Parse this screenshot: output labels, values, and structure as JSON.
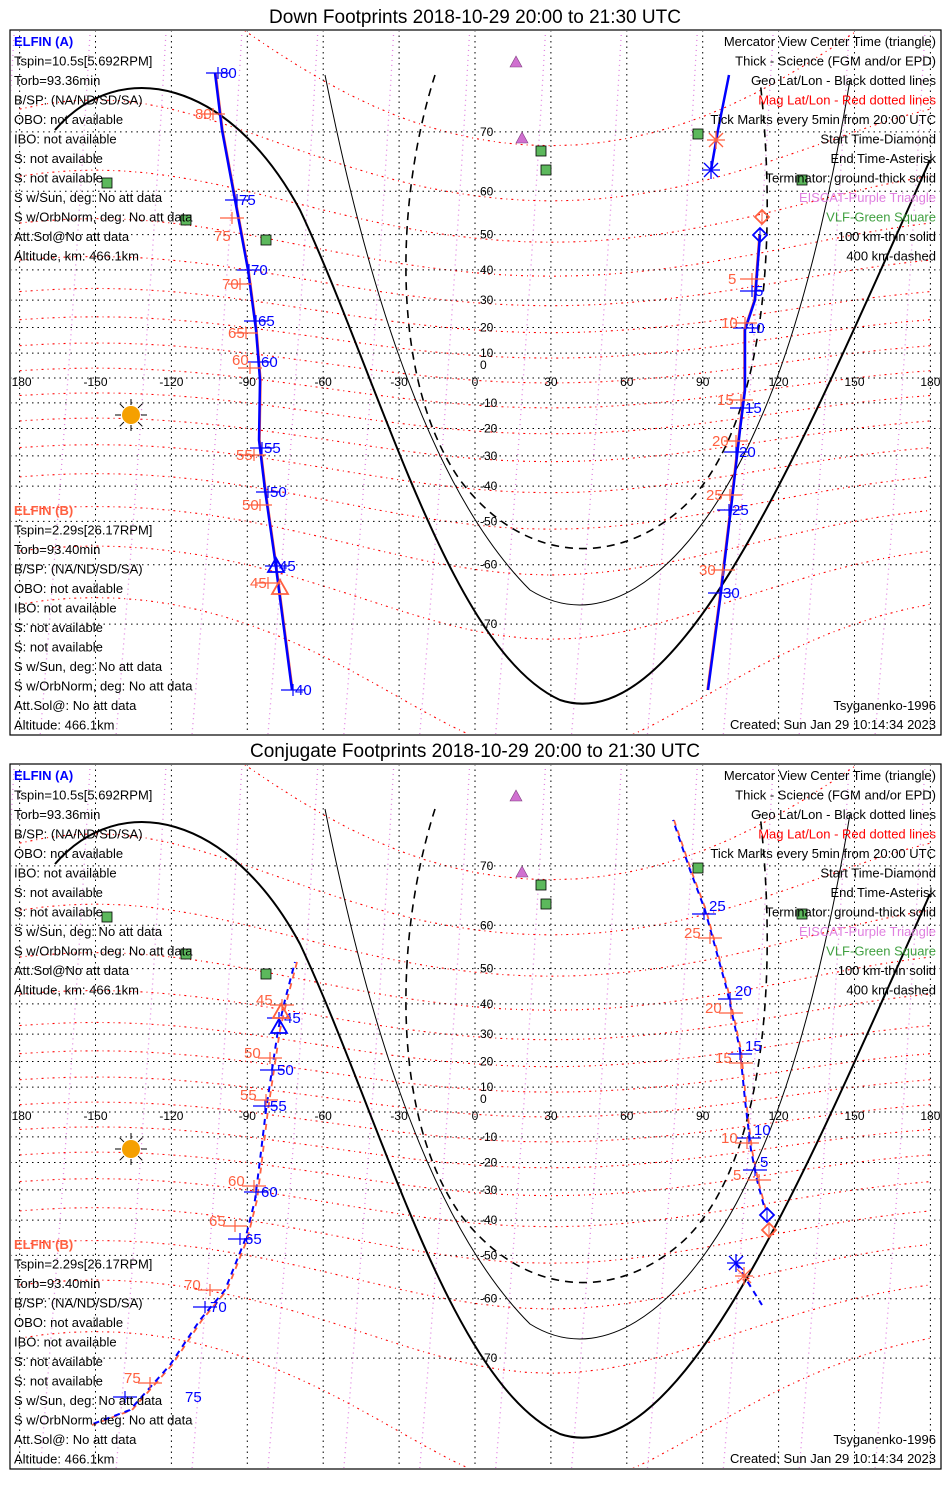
{
  "panels": [
    {
      "title": "Down Footprints 2018-10-29 20:00 to 21:30 UTC",
      "mode": "down",
      "elfin_a": {
        "name": "ELFIN (A)",
        "lines": [
          "Tspin=10.5s[5.692RPM]",
          "Torb=93.36min",
          "B/SP: (NA/ND/SD/SA)",
          "OBO: not available",
          "IBO: not available",
          "S: not available",
          "S: not available",
          "S w/Sun, deg: No att data",
          "S w/OrbNorm, deg: No att data",
          "Att.Sol@No att data",
          "Altitude, km: 466.1km"
        ]
      },
      "elfin_b": {
        "name": "ELFIN (B)",
        "lines": [
          "Tspin=2.29s[26.17RPM]",
          "Torb=93.40min",
          "B/SP: (NA/ND/SD/SA)",
          "OBO: not available",
          "IBO: not available",
          "S: not available",
          "S: not available",
          "S w/Sun, deg: No att data",
          "S w/OrbNorm, deg: No att data",
          "Att.Sol@: No att data",
          "Altitude: 466.1km"
        ]
      },
      "west_ticks_blue": [
        "80",
        "75",
        "70",
        "65",
        "60",
        "55",
        "50",
        "45",
        "40"
      ],
      "west_ticks_red": [
        "80",
        "75",
        "70",
        "65",
        "60",
        "55",
        "50",
        "45"
      ],
      "east_ticks_blue": [
        "5",
        "10",
        "15",
        "20",
        "25",
        "30"
      ],
      "east_ticks_red": [
        "5",
        "10",
        "15",
        "20",
        "25",
        "30"
      ],
      "model": "Tsyganenko-1996",
      "created": "Created: Sun Jan 29 10:14:34 2023"
    },
    {
      "title": "Conjugate Footprints 2018-10-29 20:00 to 21:30 UTC",
      "mode": "conjugate",
      "elfin_a": {
        "name": "ELFIN (A)",
        "lines": [
          "Tspin=10.5s[5.692RPM]",
          "Torb=93.36min",
          "B/SP: (NA/ND/SD/SA)",
          "OBO: not available",
          "IBO: not available",
          "S: not available",
          "S: not available",
          "S w/Sun, deg: No att data",
          "S w/OrbNorm, deg: No att data",
          "Att.Sol@No att data",
          "Altitude, km: 466.1km"
        ]
      },
      "elfin_b": {
        "name": "ELFIN (B)",
        "lines": [
          "Tspin=2.29s[26.17RPM]",
          "Torb=93.40min",
          "B/SP: (NA/ND/SD/SA)",
          "OBO: not available",
          "IBO: not available",
          "S: not available",
          "S: not available",
          "S w/Sun, deg: No att data",
          "S w/OrbNorm, deg: No att data",
          "Att.Sol@: No att data",
          "Altitude: 466.1km"
        ]
      },
      "west_ticks_blue": [
        "45",
        "50",
        "55",
        "60",
        "65",
        "70",
        "75"
      ],
      "west_ticks_red": [
        "45",
        "50",
        "55",
        "60",
        "65",
        "70",
        "75"
      ],
      "east_ticks_blue": [
        "25",
        "20",
        "15",
        "10",
        "5"
      ],
      "east_ticks_red": [
        "25",
        "20",
        "15",
        "10",
        "5"
      ],
      "model": "Tsyganenko-1996",
      "created": "Created: Sun Jan 29 10:14:34 2023"
    }
  ],
  "legend": [
    {
      "text": "Mercator View Center Time (triangle)",
      "color": "#000000"
    },
    {
      "text": "Thick - Science (FGM and/or EPD)",
      "color": "#000000"
    },
    {
      "text": "Geo Lat/Lon - Black dotted lines",
      "color": "#000000"
    },
    {
      "text": "Mag Lat/Lon - Red dotted lines",
      "color": "#ff0000"
    },
    {
      "text": "Tick Marks every 5min from 20:00 UTC",
      "color": "#000000"
    },
    {
      "text": "Start Time-Diamond",
      "color": "#000000"
    },
    {
      "text": "End Time-Asterisk",
      "color": "#000000"
    },
    {
      "text": "Terminator: ground-thick solid",
      "color": "#000000"
    },
    {
      "text": "EISCAT-Purple Triangle",
      "color": "#e080e0"
    },
    {
      "text": "VLF-Green Square",
      "color": "#40a040"
    },
    {
      "text": "100 km-thin solid",
      "color": "#000000"
    },
    {
      "text": "400 km-dashed",
      "color": "#000000"
    }
  ],
  "lon_labels": [
    "-180",
    "-150",
    "-120",
    "-90",
    "-60",
    "-30",
    "0",
    "30",
    "60",
    "90",
    "120",
    "150",
    "180"
  ],
  "lat_labels": [
    "70",
    "60",
    "50",
    "40",
    "30",
    "20",
    "10",
    "0",
    "-10",
    "-20",
    "-30",
    "-40",
    "-50",
    "-60",
    "-70"
  ],
  "colors": {
    "elfin_a": "#0000ff",
    "elfin_b": "#ff6040",
    "mag_grid": "#ff0000",
    "mag_lon": "#e080e0",
    "vlf": "#40a040",
    "eiscat": "#d070d0",
    "sun": "#f5a000"
  }
}
